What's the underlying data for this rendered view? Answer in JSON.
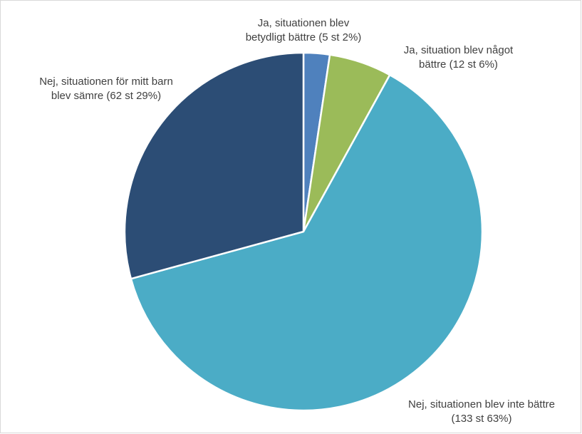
{
  "chart_data": {
    "type": "pie",
    "start_angle_deg": 0,
    "direction": "clockwise",
    "slices": [
      {
        "label_line1": "Ja, situationen blev",
        "label_line2": "betydligt bättre (5 st 2%)",
        "count": 5,
        "percent": 2,
        "color": "#4f81bd"
      },
      {
        "label_line1": "Ja, situation blev något",
        "label_line2": "bättre (12 st 6%)",
        "count": 12,
        "percent": 6,
        "color": "#9bbb59"
      },
      {
        "label_line1": "Nej, situationen blev inte bättre",
        "label_line2": "(133 st 63%)",
        "count": 133,
        "percent": 63,
        "color": "#4bacc6"
      },
      {
        "label_line1": "Nej, situationen för mitt barn",
        "label_line2": "blev sämre (62 st 29%)",
        "count": 62,
        "percent": 29,
        "color": "#2c4d75"
      }
    ]
  }
}
